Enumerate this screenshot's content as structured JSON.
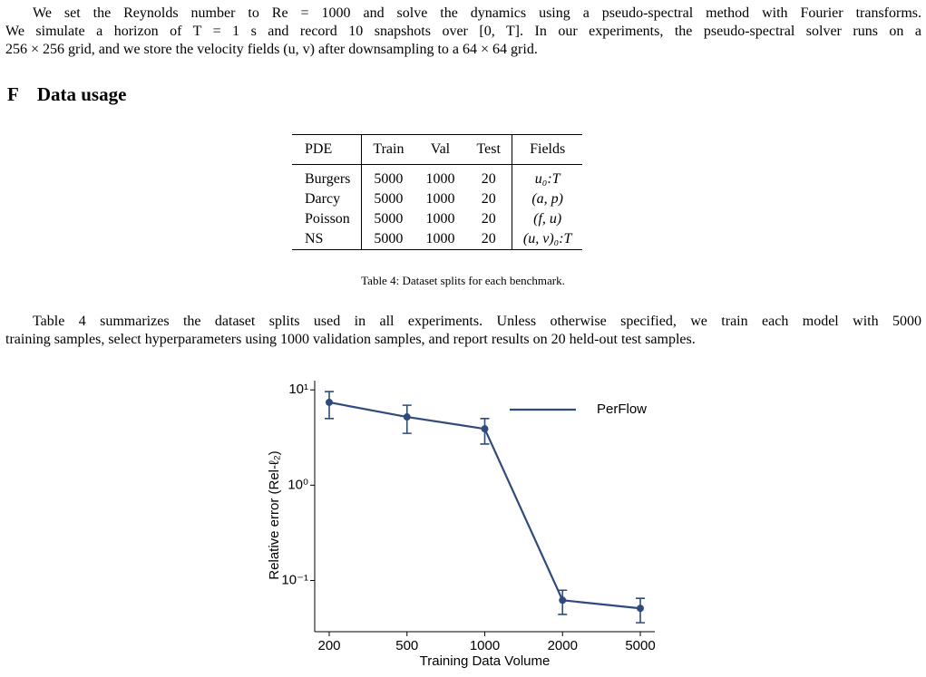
{
  "paragraphs": [
    {
      "lines": [
        "We set the Reynolds number to Re = 1000 and solve the dynamics using a pseudo-spectral method with Fourier transforms.",
        "We simulate a horizon of T = 1 s and record 10 snapshots over [0, T]. In our experiments, the pseudo-spectral solver runs on a",
        "256 × 256 grid, and we store the velocity fields (u, v) after downsampling to a 64 × 64 grid."
      ]
    },
    {
      "lines": [
        "Table 4 summarizes the dataset splits used in all experiments. Unless otherwise specified, we train each model with 5000",
        "training samples, select hyperparameters using 1000 validation samples, and report results on 20 held-out test samples."
      ]
    }
  ],
  "section": {
    "number": "F",
    "title": "Data usage"
  },
  "table": {
    "header": [
      "PDE",
      "Train",
      "Val",
      "Test",
      "Fields"
    ],
    "rows": [
      [
        "Burgers",
        "5000",
        "1000",
        "20",
        "u₀:T"
      ],
      [
        "Darcy",
        "5000",
        "1000",
        "20",
        "(a, p)"
      ],
      [
        "Poisson",
        "5000",
        "1000",
        "20",
        "(f, u)"
      ],
      [
        "NS",
        "5000",
        "1000",
        "20",
        "(u, v)₀:T"
      ]
    ],
    "caption": "Table 4: Dataset splits for each benchmark."
  },
  "chart_data": {
    "type": "line",
    "x_label": "Training Data Volume",
    "y_label": "Relative error (Rel-ℓ₂)",
    "categories": [
      "200",
      "500",
      "1000",
      "2000",
      "5000"
    ],
    "series": [
      {
        "name": "PerFlow",
        "color": "#2f4b7c",
        "values": [
          7.4,
          5.2,
          3.9,
          0.062,
          0.051
        ],
        "lower": [
          5.0,
          3.5,
          2.7,
          0.044,
          0.036
        ],
        "upper": [
          9.6,
          6.9,
          5.0,
          0.079,
          0.065
        ]
      }
    ],
    "log_y": true,
    "ylim": [
      0.029,
      12.5
    ],
    "yticks": [
      {
        "value": 0.1,
        "label": "10⁻¹"
      },
      {
        "value": 1,
        "label": "10⁰"
      },
      {
        "value": 10,
        "label": "10¹"
      }
    ],
    "legend": "upper right"
  }
}
